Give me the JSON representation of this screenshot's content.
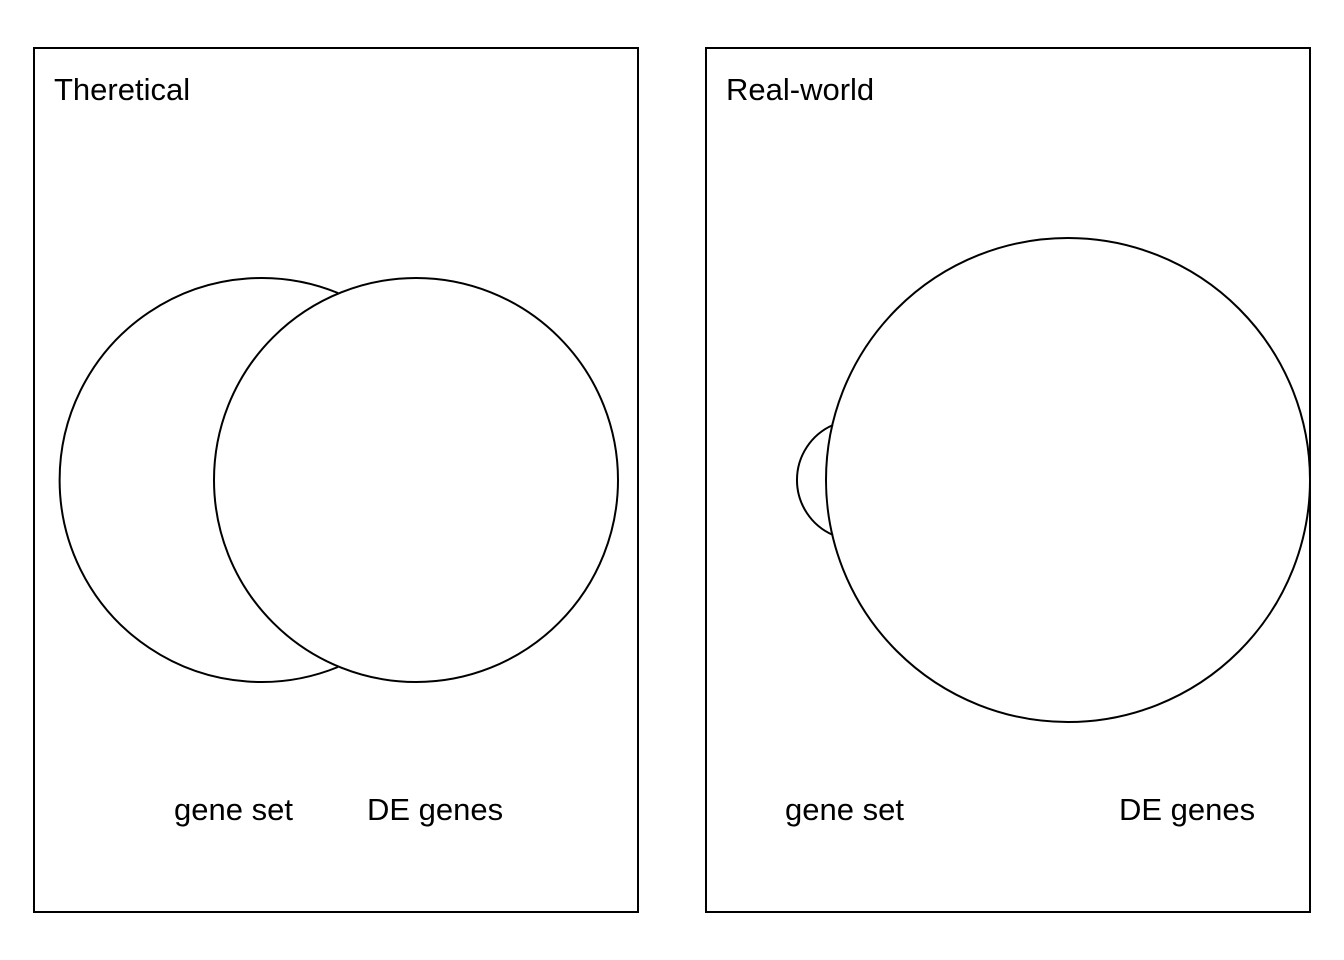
{
  "panels": {
    "theoretical": {
      "title": "Theretical",
      "set_a_label": "gene set",
      "set_b_label": "DE genes"
    },
    "real_world": {
      "title": "Real-world",
      "set_a_label": "gene set",
      "set_b_label": "DE genes"
    }
  },
  "colors": {
    "stroke": "#000000",
    "background": "#ffffff"
  }
}
